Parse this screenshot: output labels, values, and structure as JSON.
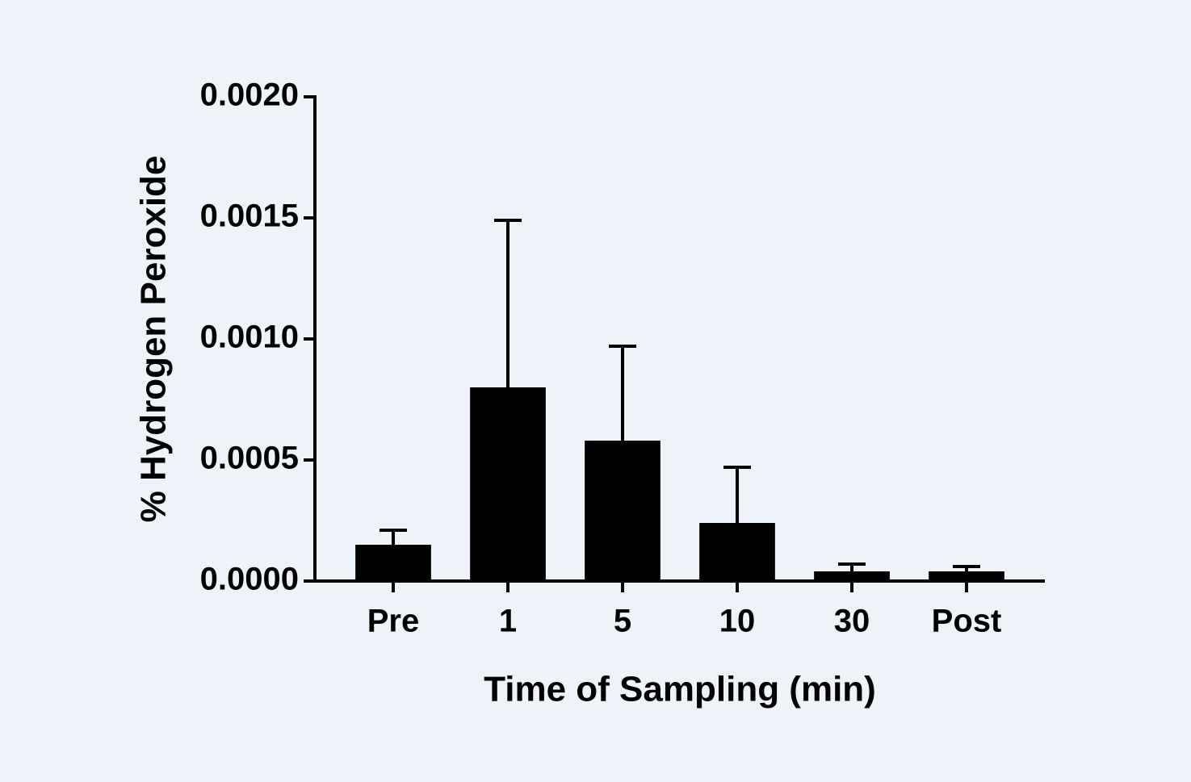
{
  "chart_data": {
    "type": "bar",
    "x_label": "Time of Sampling (min)",
    "y_label": "% Hydrogen Peroxide",
    "categories": [
      "Pre",
      "1",
      "5",
      "10",
      "30",
      "Post"
    ],
    "values": [
      0.00015,
      0.0008,
      0.00058,
      0.00024,
      4e-05,
      4e-05
    ],
    "errors": [
      6e-05,
      0.00069,
      0.00039,
      0.00023,
      3e-05,
      2e-05
    ],
    "color": "#000000",
    "ylim": [
      0,
      0.002
    ],
    "yticks": [
      {
        "value": 0,
        "label": "0.0000"
      },
      {
        "value": 0.0005,
        "label": "0.0005"
      },
      {
        "value": 0.001,
        "label": "0.0010"
      },
      {
        "value": 0.0015,
        "label": "0.0015"
      },
      {
        "value": 0.002,
        "label": "0.0020"
      }
    ]
  }
}
